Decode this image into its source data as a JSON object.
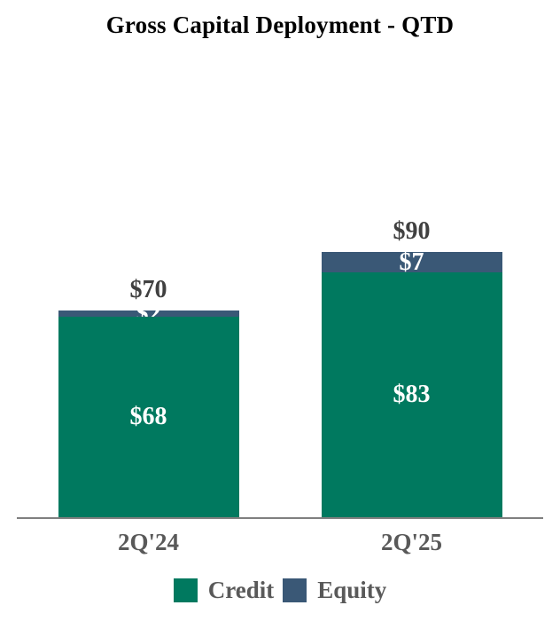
{
  "chart_data": {
    "type": "bar",
    "stacked": true,
    "title": "Gross Capital Deployment - QTD",
    "categories": [
      "2Q'24",
      "2Q'25"
    ],
    "series": [
      {
        "name": "Credit",
        "color": "#00795F",
        "values": [
          68,
          83
        ],
        "labels": [
          "$68",
          "$83"
        ]
      },
      {
        "name": "Equity",
        "color": "#3A5876",
        "values": [
          2,
          7
        ],
        "labels": [
          "$2",
          "$7"
        ]
      }
    ],
    "totals": {
      "values": [
        70,
        90
      ],
      "labels": [
        "$70",
        "$90"
      ]
    },
    "value_prefix": "$",
    "ylim": [
      0,
      90
    ],
    "gridlines": false,
    "y_axis_visible": false,
    "legend_position": "bottom",
    "styles": {
      "title_color": "#000000",
      "segment_label_color": "#FFFFFF",
      "total_label_color": "#404040",
      "axis_label_color": "#595959",
      "legend_label_color": "#595959",
      "axis_line_color": "#7F7F7F",
      "background_color": "#FFFFFF"
    }
  }
}
